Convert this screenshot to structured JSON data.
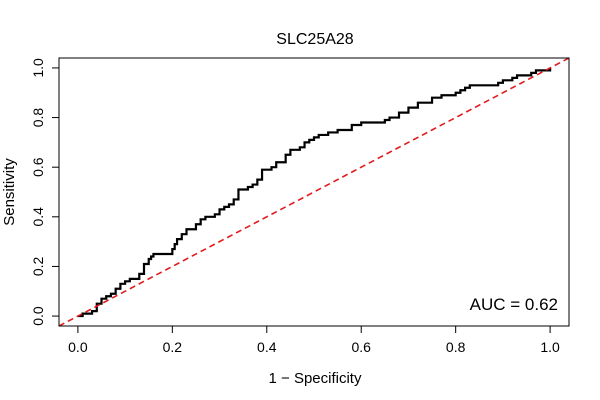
{
  "chart_data": {
    "type": "line",
    "title": "SLC25A28",
    "xlabel": "1 − Specificity",
    "ylabel": "Sensitivity",
    "xlim": [
      -0.04,
      1.04
    ],
    "ylim": [
      -0.04,
      1.04
    ],
    "x_ticks": [
      "0.0",
      "0.2",
      "0.4",
      "0.6",
      "0.8",
      "1.0"
    ],
    "y_ticks": [
      "0.0",
      "0.2",
      "0.4",
      "0.6",
      "0.8",
      "1.0"
    ],
    "annotation": "AUC = 0.62",
    "grid": false,
    "series": [
      {
        "name": "ROC curve",
        "color": "#000000",
        "style": "solid-step",
        "x": [
          0.0,
          0.01,
          0.02,
          0.03,
          0.04,
          0.05,
          0.06,
          0.07,
          0.08,
          0.09,
          0.1,
          0.11,
          0.13,
          0.14,
          0.15,
          0.155,
          0.16,
          0.2,
          0.205,
          0.21,
          0.22,
          0.23,
          0.25,
          0.26,
          0.27,
          0.29,
          0.3,
          0.31,
          0.32,
          0.33,
          0.34,
          0.36,
          0.37,
          0.38,
          0.39,
          0.41,
          0.42,
          0.44,
          0.45,
          0.47,
          0.48,
          0.49,
          0.5,
          0.51,
          0.53,
          0.55,
          0.58,
          0.6,
          0.65,
          0.66,
          0.68,
          0.7,
          0.72,
          0.75,
          0.77,
          0.8,
          0.81,
          0.82,
          0.83,
          0.88,
          0.89,
          0.9,
          0.92,
          0.93,
          0.96,
          0.97,
          1.0
        ],
        "y": [
          0.0,
          0.01,
          0.01,
          0.02,
          0.05,
          0.07,
          0.08,
          0.09,
          0.11,
          0.13,
          0.14,
          0.15,
          0.17,
          0.21,
          0.23,
          0.24,
          0.25,
          0.27,
          0.29,
          0.31,
          0.33,
          0.35,
          0.37,
          0.39,
          0.4,
          0.41,
          0.43,
          0.44,
          0.45,
          0.47,
          0.51,
          0.52,
          0.53,
          0.55,
          0.59,
          0.6,
          0.62,
          0.65,
          0.67,
          0.68,
          0.7,
          0.71,
          0.72,
          0.73,
          0.74,
          0.75,
          0.77,
          0.78,
          0.79,
          0.8,
          0.82,
          0.84,
          0.86,
          0.88,
          0.89,
          0.9,
          0.91,
          0.92,
          0.93,
          0.93,
          0.94,
          0.95,
          0.96,
          0.97,
          0.98,
          0.99,
          1.0
        ]
      },
      {
        "name": "Chance line",
        "color": "#e31a1c",
        "style": "dashed",
        "x": [
          -0.04,
          1.04
        ],
        "y": [
          -0.04,
          1.04
        ]
      }
    ]
  }
}
